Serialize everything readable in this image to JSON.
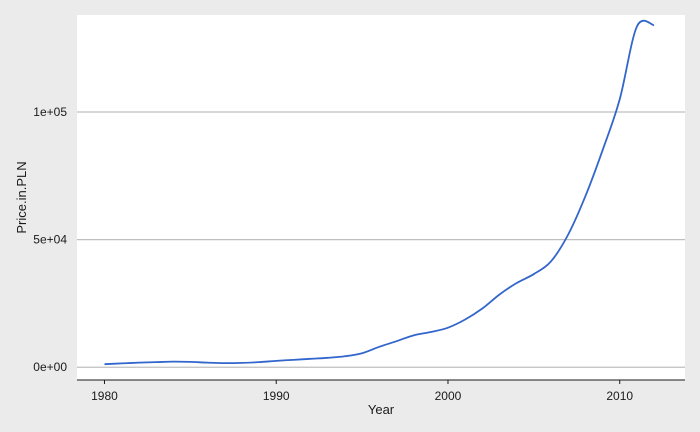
{
  "chart_data": {
    "type": "line",
    "title": "",
    "xlabel": "Year",
    "ylabel": "Price.in.PLN",
    "xlim": [
      1978.4,
      2013.8
    ],
    "ylim": [
      -5000,
      138000
    ],
    "x_ticks": [
      1980,
      1990,
      2000,
      2010
    ],
    "x_tick_labels": [
      "1980",
      "1990",
      "2000",
      "2010"
    ],
    "y_ticks": [
      0,
      50000,
      100000
    ],
    "y_tick_labels": [
      "0e+00",
      "5e+04",
      "1e+05"
    ],
    "grid": "horizontal",
    "legend": "none",
    "colors": {
      "line": "#3366cc",
      "panel": "#ffffff",
      "background": "#ebebeb",
      "grid": "#bfbfbf",
      "axis": "#1a1a1a"
    },
    "series": [
      {
        "x": [
          1980,
          1981,
          1982,
          1983,
          1984,
          1985,
          1986,
          1987,
          1988,
          1989,
          1990,
          1991,
          1992,
          1993,
          1994,
          1995,
          1996,
          1997,
          1998,
          1999,
          2000,
          2001,
          2002,
          2003,
          2004,
          2005,
          2006,
          2007,
          2008,
          2009,
          2010,
          2011,
          2012
        ],
        "values": [
          1200,
          1500,
          1800,
          2000,
          2200,
          2100,
          1800,
          1600,
          1700,
          2000,
          2500,
          2900,
          3300,
          3700,
          4300,
          5500,
          8000,
          10200,
          12500,
          13800,
          15500,
          18700,
          23000,
          28500,
          33000,
          36500,
          41500,
          52000,
          67000,
          85000,
          105000,
          133500,
          134000
        ]
      }
    ]
  }
}
